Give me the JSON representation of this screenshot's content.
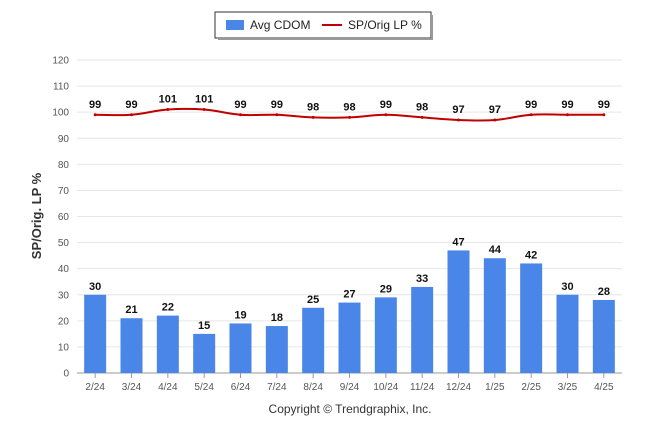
{
  "chart_data": {
    "type": "bar",
    "categories": [
      "2/24",
      "3/24",
      "4/24",
      "5/24",
      "6/24",
      "7/24",
      "8/24",
      "9/24",
      "10/24",
      "11/24",
      "12/24",
      "1/25",
      "2/25",
      "3/25",
      "4/25"
    ],
    "series": [
      {
        "name": "Avg CDOM",
        "type": "bar",
        "color": "#4a86e8",
        "values": [
          30,
          21,
          22,
          15,
          19,
          18,
          25,
          27,
          29,
          33,
          47,
          44,
          42,
          30,
          28
        ]
      },
      {
        "name": "SP/Orig LP %",
        "type": "line",
        "color": "#c00000",
        "values": [
          99,
          99,
          101,
          101,
          99,
          99,
          98,
          98,
          99,
          98,
          97,
          97,
          99,
          99,
          99
        ]
      }
    ],
    "ylabel": "SP/Orig. LP %",
    "ylim": [
      0,
      120
    ],
    "yticks": [
      0,
      10,
      20,
      30,
      40,
      50,
      60,
      70,
      80,
      90,
      100,
      110,
      120
    ],
    "grid": true,
    "legend_position": "top-center"
  },
  "credit": "Copyright © Trendgraphix, Inc."
}
